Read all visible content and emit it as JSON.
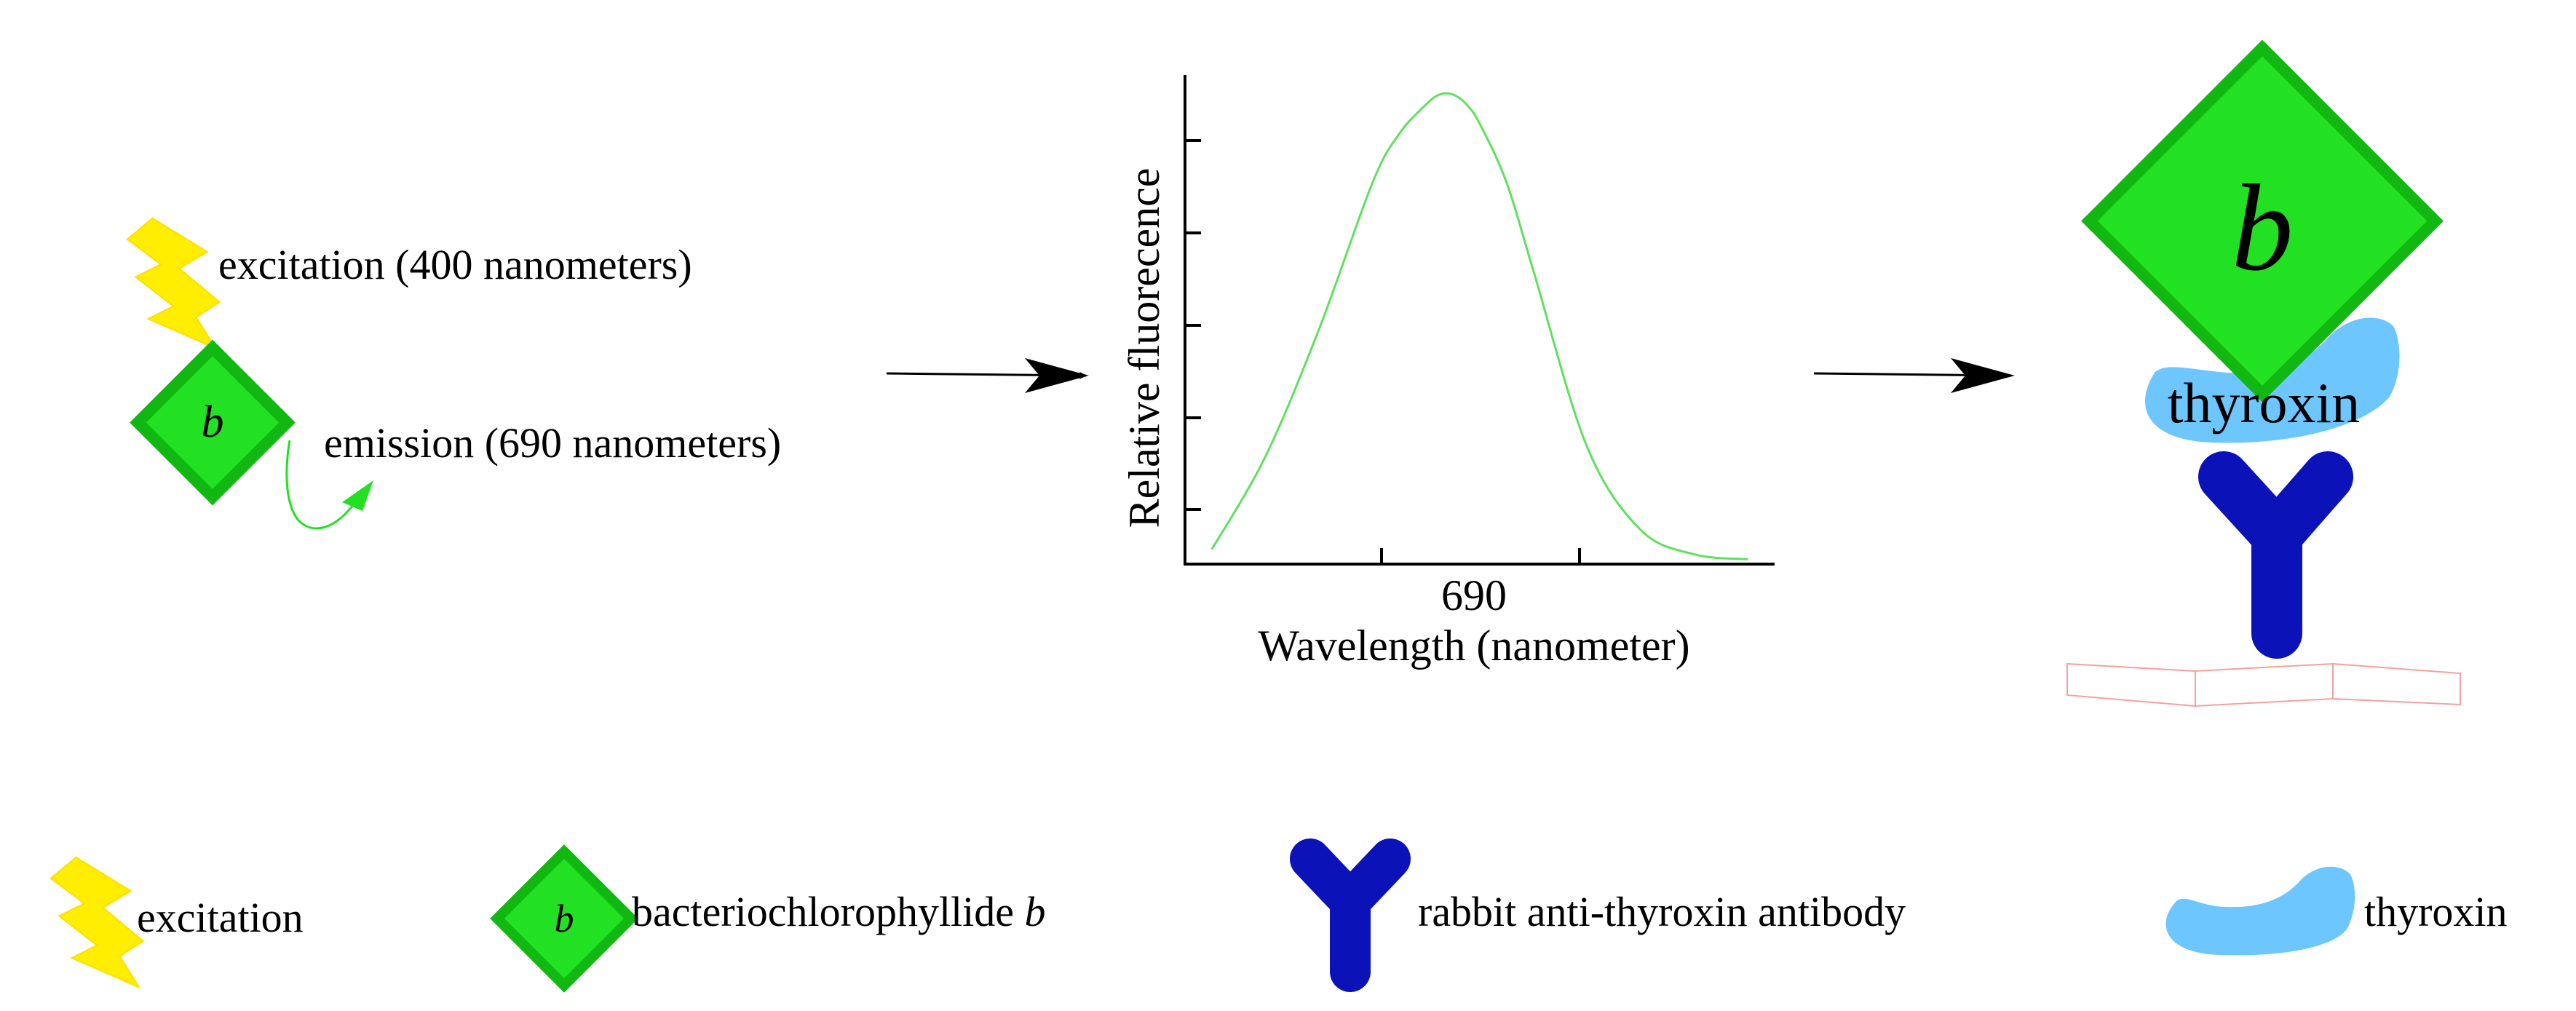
{
  "step1": {
    "excitation_label": "excitation (400 nanometers)",
    "molecule_letter": "b",
    "emission_label": "emission (690 nanometers)"
  },
  "chart": {
    "ylabel": "Relative fluorecence",
    "xlabel": "Wavelength (nanometer)",
    "peak_tick_label": "690"
  },
  "chart_data": {
    "type": "line",
    "xlabel": "Wavelength (nanometer)",
    "ylabel": "Relative fluorecence",
    "x_tick_labels": [
      "690"
    ],
    "series": [
      {
        "x": [
          600,
          620,
          640,
          660,
          670,
          680,
          685,
          690,
          695,
          700,
          710,
          720,
          740,
          760,
          780,
          800
        ],
        "y": [
          0.03,
          0.22,
          0.48,
          0.78,
          0.88,
          0.94,
          0.96,
          0.96,
          0.94,
          0.9,
          0.78,
          0.6,
          0.24,
          0.07,
          0.02,
          0.01
        ]
      }
    ],
    "xlim": [
      590,
      810
    ],
    "ylim": [
      0,
      1
    ],
    "grid": false,
    "colors": {
      "line": "#5fe05f"
    }
  },
  "complex": {
    "molecule_letter": "b",
    "thyroxin_label": "thyroxin"
  },
  "legend": {
    "items": [
      {
        "icon": "lightning-bolt-icon",
        "label": "excitation"
      },
      {
        "icon": "green-diamond-icon",
        "label_prefix": "bacteriochlorophyllide ",
        "label_italic": "b",
        "letter": "b"
      },
      {
        "icon": "y-antibody-icon",
        "label": "rabbit anti-thyroxin antibody"
      },
      {
        "icon": "thyroxin-shape-icon",
        "label": "thyroxin"
      }
    ]
  },
  "colors": {
    "bolt": "#ffee00",
    "diamond_fill": "#22e022",
    "diamond_stroke": "#11b811",
    "antibody": "#0a12b8",
    "thyroxin": "#6ec6ff",
    "plate": "#f4a0a0",
    "emission_arrow": "#22e022"
  }
}
